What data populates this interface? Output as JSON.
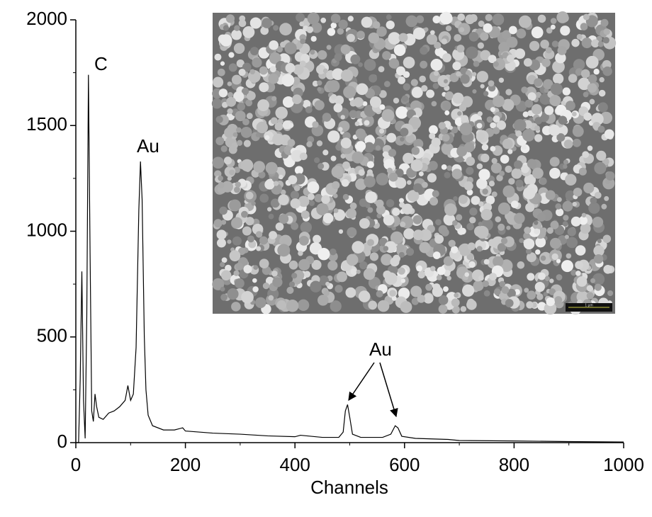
{
  "chart_data": {
    "type": "line",
    "x_label": "Channels",
    "x": [
      0,
      5,
      8,
      11,
      14,
      17,
      20,
      23,
      26,
      29,
      32,
      35,
      38,
      42,
      50,
      60,
      70,
      80,
      90,
      95,
      100,
      105,
      110,
      115,
      118,
      121,
      125,
      128,
      132,
      140,
      160,
      180,
      195,
      200,
      250,
      300,
      350,
      400,
      410,
      450,
      480,
      488,
      492,
      496,
      500,
      505,
      520,
      560,
      575,
      583,
      588,
      595,
      620,
      680,
      700,
      800,
      900,
      1000
    ],
    "values": [
      0,
      0,
      300,
      810,
      200,
      20,
      600,
      1740,
      900,
      150,
      100,
      230,
      170,
      120,
      110,
      140,
      150,
      170,
      200,
      270,
      200,
      230,
      450,
      1100,
      1330,
      1150,
      500,
      250,
      130,
      80,
      60,
      60,
      70,
      55,
      45,
      40,
      32,
      28,
      35,
      25,
      25,
      50,
      150,
      180,
      120,
      40,
      25,
      25,
      40,
      80,
      70,
      30,
      20,
      15,
      10,
      8,
      5,
      3
    ],
    "color": "#000000",
    "xlim": [
      0,
      1000
    ],
    "xticks": [
      0,
      200,
      400,
      600,
      800,
      1000
    ],
    "ylim": [
      0,
      2000
    ],
    "yticks": [
      0,
      500,
      1000,
      1500,
      2000
    ],
    "annotations": [
      "C",
      "Au",
      "Au"
    ],
    "inset_scale_label": "1 µm"
  }
}
